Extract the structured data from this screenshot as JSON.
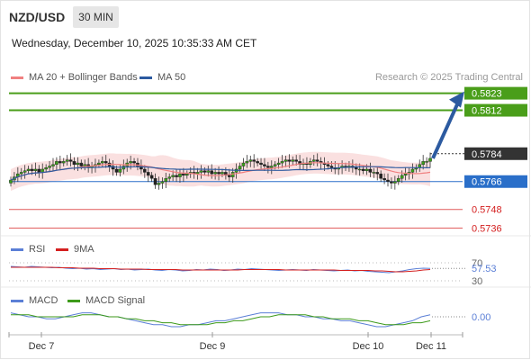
{
  "header": {
    "symbol": "NZD/USD",
    "timeframe": "30 MIN",
    "datetime": "Wednesday, December 10, 2025 10:35:33 AM CET",
    "research": "Research © 2025 Trading Central"
  },
  "legends": {
    "main": [
      {
        "label": "MA 20 + Bollinger Bands",
        "color": "#f08080"
      },
      {
        "label": "MA 50",
        "color": "#2c5aa0"
      }
    ],
    "rsi": [
      {
        "label": "RSI",
        "color": "#5b7fd6"
      },
      {
        "label": "9MA",
        "color": "#d42020"
      }
    ],
    "macd": [
      {
        "label": "MACD",
        "color": "#5b7fd6"
      },
      {
        "label": "MACD Signal",
        "color": "#3d9a1a"
      }
    ]
  },
  "chart_data": [
    {
      "type": "candlestick",
      "title": "NZD/USD 30 MIN",
      "x_ticks": [
        "Dec 7",
        "Dec 9",
        "Dec 10",
        "Dec 11"
      ],
      "ylim": [
        0.5731,
        0.5828
      ],
      "close_series": [
        0.5767,
        0.5769,
        0.5771,
        0.5772,
        0.5773,
        0.5774,
        0.5773,
        0.5774,
        0.5772,
        0.5774,
        0.5775,
        0.5776,
        0.5777,
        0.5779,
        0.5778,
        0.5779,
        0.578,
        0.5779,
        0.5777,
        0.5778,
        0.5776,
        0.5777,
        0.5775,
        0.5776,
        0.5777,
        0.5778,
        0.5779,
        0.5778,
        0.5776,
        0.5774,
        0.5772,
        0.5774,
        0.5776,
        0.5778,
        0.5779,
        0.5778,
        0.5776,
        0.5774,
        0.5772,
        0.577,
        0.5768,
        0.5764,
        0.5765,
        0.5766,
        0.5768,
        0.5769,
        0.577,
        0.5769,
        0.5771,
        0.577,
        0.5771,
        0.5772,
        0.5771,
        0.5772,
        0.5773,
        0.5772,
        0.5773,
        0.5771,
        0.5772,
        0.5771,
        0.5772,
        0.577,
        0.5769,
        0.5772,
        0.5774,
        0.5776,
        0.5778,
        0.5779,
        0.578,
        0.5779,
        0.5778,
        0.5777,
        0.5776,
        0.5775,
        0.5776,
        0.5777,
        0.5778,
        0.5779,
        0.578,
        0.5779,
        0.578,
        0.5779,
        0.5777,
        0.5778,
        0.5777,
        0.5779,
        0.578,
        0.5779,
        0.5778,
        0.5777,
        0.5776,
        0.5775,
        0.5774,
        0.5775,
        0.5776,
        0.5775,
        0.5776,
        0.5775,
        0.5774,
        0.5774,
        0.5773,
        0.5774,
        0.5772,
        0.5772,
        0.5771,
        0.5768,
        0.5767,
        0.5766,
        0.5765,
        0.5766,
        0.5768,
        0.577,
        0.5771,
        0.5772,
        0.5774,
        0.5775,
        0.5777,
        0.5779,
        0.5779,
        0.5781
      ],
      "series": [
        {
          "name": "MA 20 + Bollinger Bands",
          "color": "#f08080"
        },
        {
          "name": "MA 50",
          "color": "#2c5aa0"
        }
      ],
      "levels": [
        {
          "value": "0.5823",
          "kind": "resistance",
          "color": "#4a9e1a",
          "label_bg": "#4a9e1a"
        },
        {
          "value": "0.5812",
          "kind": "resistance",
          "color": "#4a9e1a",
          "label_bg": "#4a9e1a"
        },
        {
          "value": "0.5784",
          "kind": "last",
          "color": "#333333",
          "label_bg": "#333333"
        },
        {
          "value": "0.5766",
          "kind": "pivot",
          "color": "#2a6fc9",
          "label_bg": "#2a6fc9"
        },
        {
          "value": "0.5748",
          "kind": "support",
          "color": "#d42020",
          "label_bg": "none"
        },
        {
          "value": "0.5736",
          "kind": "support",
          "color": "#d42020",
          "label_bg": "none"
        }
      ]
    },
    {
      "type": "line",
      "title": "RSI",
      "ylim": [
        30,
        70
      ],
      "ticks": [
        "70",
        "30"
      ],
      "last_value": "57.53",
      "rsi": [
        62,
        61,
        60,
        62,
        61,
        60,
        59,
        60,
        58,
        57,
        58,
        56,
        57,
        55,
        56,
        57,
        55,
        56,
        54,
        55,
        56,
        54,
        53,
        55,
        54,
        52,
        53,
        55,
        54,
        56,
        55,
        53,
        54,
        56,
        55,
        57,
        56,
        55,
        54,
        53,
        54,
        55,
        54,
        53,
        55,
        54,
        53,
        52,
        53,
        54,
        52,
        53,
        51,
        50,
        49,
        48,
        50,
        52,
        55,
        57,
        58,
        57.53
      ],
      "ma9": [
        60,
        60,
        60,
        60,
        60,
        60,
        60,
        59,
        59,
        59,
        58,
        58,
        58,
        57,
        57,
        57,
        56,
        56,
        56,
        56,
        55,
        55,
        55,
        55,
        55,
        54,
        54,
        54,
        54,
        54,
        54,
        54,
        54,
        54,
        55,
        55,
        55,
        55,
        55,
        55,
        54,
        54,
        54,
        54,
        54,
        54,
        54,
        54,
        53,
        53,
        53,
        53,
        53,
        52,
        52,
        51,
        50,
        50,
        51,
        52,
        54,
        55
      ]
    },
    {
      "type": "line",
      "title": "MACD",
      "last_value": "0.00",
      "macd": [
        0.0002,
        0.0001,
        0.0,
        0.0,
        -0.0001,
        -0.0001,
        0.0,
        0.0001,
        0.0002,
        0.0002,
        0.0001,
        0.0,
        0.0,
        -0.0001,
        -0.0002,
        -0.0003,
        -0.0004,
        -0.0004,
        -0.0005,
        -0.0005,
        -0.0004,
        -0.0004,
        -0.0003,
        -0.0002,
        -0.0002,
        -0.0001,
        0.0,
        0.0001,
        0.0002,
        0.0002,
        0.0002,
        0.0001,
        0.0001,
        0.0,
        0.0,
        -0.0001,
        -0.0001,
        -0.0002,
        -0.0002,
        -0.0003,
        -0.0004,
        -0.0005,
        -0.0005,
        -0.0004,
        -0.0003,
        -0.0002,
        0.0,
        0.0001
      ],
      "signal": [
        0.0001,
        0.0001,
        0.0001,
        0.0,
        0.0,
        0.0,
        0.0,
        0.0,
        0.0001,
        0.0001,
        0.0001,
        0.0,
        0.0,
        -0.0001,
        -0.0001,
        -0.0002,
        -0.0002,
        -0.0003,
        -0.0003,
        -0.0004,
        -0.0004,
        -0.0004,
        -0.0004,
        -0.0003,
        -0.0003,
        -0.0002,
        -0.0002,
        -0.0001,
        0.0,
        0.0,
        0.0001,
        0.0001,
        0.0001,
        0.0001,
        0.0,
        0.0,
        -0.0001,
        -0.0001,
        -0.0001,
        -0.0002,
        -0.0002,
        -0.0003,
        -0.0004,
        -0.0004,
        -0.0004,
        -0.0003,
        -0.0003,
        -0.0002
      ]
    }
  ]
}
